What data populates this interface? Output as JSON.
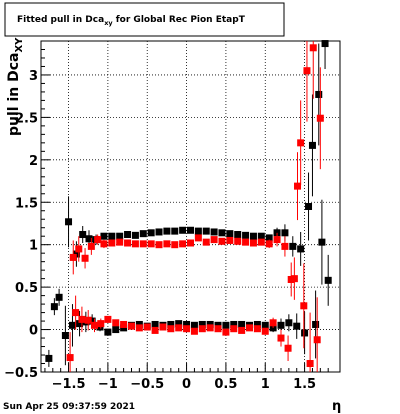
{
  "chart_data": {
    "type": "scatter",
    "title_main": "Fitted pull in Dca",
    "title_sub": "xy",
    "title_rest": " for Global Rec Pion EtapT",
    "ylabel_main": "pull in Dca",
    "ylabel_sub": "XY",
    "xlabel": "η",
    "timestamp": "Sun Apr 25 09:37:59 2021",
    "xlim": [
      -1.85,
      1.95
    ],
    "ylim": [
      -0.5,
      3.4
    ],
    "x_ticks": [
      -1.5,
      -1,
      -0.5,
      0,
      0.5,
      1,
      1.5
    ],
    "x_tick_labels": [
      "−1.5",
      "−1",
      "−0.5",
      "0",
      "0.5",
      "1",
      "1.5"
    ],
    "y_ticks": [
      -0.5,
      0,
      0.5,
      1,
      1.5,
      2,
      2.5,
      3
    ],
    "y_tick_labels": [
      "−0.5",
      "0",
      "0.5",
      "1",
      "1.5",
      "2",
      "2.5",
      "3"
    ],
    "grid": true,
    "series": [
      {
        "color": "#000000",
        "points": [
          {
            "x": -1.75,
            "y": -0.34,
            "e": 0.1
          },
          {
            "x": -1.68,
            "y": 0.27,
            "e": 0.1
          },
          {
            "x": -1.62,
            "y": 0.38,
            "e": 0.1
          },
          {
            "x": -1.54,
            "y": -0.07,
            "e": 0.35
          },
          {
            "x": -1.5,
            "y": 1.27,
            "e": 0.3
          },
          {
            "x": -1.45,
            "y": 0.05,
            "e": 0.25
          },
          {
            "x": -1.4,
            "y": 0.89,
            "e": 0.15
          },
          {
            "x": -1.36,
            "y": 0.07,
            "e": 0.15
          },
          {
            "x": -1.32,
            "y": 1.12,
            "e": 0.1
          },
          {
            "x": -1.28,
            "y": 0.09,
            "e": 0.12
          },
          {
            "x": -1.24,
            "y": 1.07,
            "e": 0.1
          },
          {
            "x": -1.2,
            "y": 0.1,
            "e": 0.08
          },
          {
            "x": -1.15,
            "y": 1.06,
            "e": 0.06
          },
          {
            "x": -1.1,
            "y": 0.03,
            "e": 0.05
          },
          {
            "x": -1.05,
            "y": 1.1,
            "e": 0.03
          },
          {
            "x": -1.0,
            "y": -0.03,
            "e": 0.03
          },
          {
            "x": -0.95,
            "y": 1.1,
            "e": 0.02
          },
          {
            "x": -0.9,
            "y": 0.0,
            "e": 0.02
          },
          {
            "x": -0.85,
            "y": 1.1,
            "e": 0.02
          },
          {
            "x": -0.8,
            "y": 0.02,
            "e": 0.02
          },
          {
            "x": -0.75,
            "y": 1.12,
            "e": 0.02
          },
          {
            "x": -0.7,
            "y": 0.05,
            "e": 0.02
          },
          {
            "x": -0.65,
            "y": 1.11,
            "e": 0.02
          },
          {
            "x": -0.6,
            "y": 0.06,
            "e": 0.02
          },
          {
            "x": -0.55,
            "y": 1.13,
            "e": 0.02
          },
          {
            "x": -0.5,
            "y": 0.04,
            "e": 0.02
          },
          {
            "x": -0.45,
            "y": 1.14,
            "e": 0.02
          },
          {
            "x": -0.4,
            "y": 0.06,
            "e": 0.02
          },
          {
            "x": -0.35,
            "y": 1.15,
            "e": 0.02
          },
          {
            "x": -0.3,
            "y": 0.05,
            "e": 0.02
          },
          {
            "x": -0.25,
            "y": 1.16,
            "e": 0.02
          },
          {
            "x": -0.2,
            "y": 0.06,
            "e": 0.02
          },
          {
            "x": -0.15,
            "y": 1.16,
            "e": 0.02
          },
          {
            "x": -0.1,
            "y": 0.07,
            "e": 0.02
          },
          {
            "x": -0.05,
            "y": 1.17,
            "e": 0.02
          },
          {
            "x": 0.0,
            "y": 0.06,
            "e": 0.02
          },
          {
            "x": 0.05,
            "y": 1.17,
            "e": 0.02
          },
          {
            "x": 0.1,
            "y": 0.05,
            "e": 0.02
          },
          {
            "x": 0.15,
            "y": 1.16,
            "e": 0.02
          },
          {
            "x": 0.2,
            "y": 0.06,
            "e": 0.02
          },
          {
            "x": 0.25,
            "y": 1.16,
            "e": 0.02
          },
          {
            "x": 0.3,
            "y": 0.06,
            "e": 0.02
          },
          {
            "x": 0.35,
            "y": 1.15,
            "e": 0.02
          },
          {
            "x": 0.4,
            "y": 0.05,
            "e": 0.02
          },
          {
            "x": 0.45,
            "y": 1.14,
            "e": 0.02
          },
          {
            "x": 0.5,
            "y": 0.05,
            "e": 0.02
          },
          {
            "x": 0.55,
            "y": 1.13,
            "e": 0.02
          },
          {
            "x": 0.6,
            "y": 0.06,
            "e": 0.02
          },
          {
            "x": 0.65,
            "y": 1.12,
            "e": 0.02
          },
          {
            "x": 0.7,
            "y": 0.06,
            "e": 0.02
          },
          {
            "x": 0.75,
            "y": 1.11,
            "e": 0.02
          },
          {
            "x": 0.8,
            "y": 0.05,
            "e": 0.02
          },
          {
            "x": 0.85,
            "y": 1.1,
            "e": 0.02
          },
          {
            "x": 0.9,
            "y": 0.06,
            "e": 0.02
          },
          {
            "x": 0.95,
            "y": 1.1,
            "e": 0.03
          },
          {
            "x": 1.0,
            "y": 0.05,
            "e": 0.03
          },
          {
            "x": 1.05,
            "y": 1.08,
            "e": 0.04
          },
          {
            "x": 1.1,
            "y": 0.02,
            "e": 0.05
          },
          {
            "x": 1.15,
            "y": 1.14,
            "e": 0.06
          },
          {
            "x": 1.2,
            "y": 0.05,
            "e": 0.08
          },
          {
            "x": 1.25,
            "y": 1.14,
            "e": 0.1
          },
          {
            "x": 1.3,
            "y": 0.08,
            "e": 0.1
          },
          {
            "x": 1.35,
            "y": 0.98,
            "e": 0.12
          },
          {
            "x": 1.4,
            "y": 0.04,
            "e": 0.15
          },
          {
            "x": 1.45,
            "y": 0.95,
            "e": 0.2
          },
          {
            "x": 1.5,
            "y": -0.04,
            "e": 0.25
          },
          {
            "x": 1.55,
            "y": 1.45,
            "e": 0.4
          },
          {
            "x": 1.6,
            "y": 2.17,
            "e": 0.6
          },
          {
            "x": 1.64,
            "y": 0.06,
            "e": 0.4
          },
          {
            "x": 1.68,
            "y": 2.77,
            "e": 0.6
          },
          {
            "x": 1.72,
            "y": 1.03,
            "e": 0.5
          },
          {
            "x": 1.76,
            "y": 3.37,
            "e": 0.3
          },
          {
            "x": 1.8,
            "y": 0.58,
            "e": 0.3
          }
        ]
      },
      {
        "color": "#ff0000",
        "points": [
          {
            "x": -1.48,
            "y": -0.33,
            "e": 0.3
          },
          {
            "x": -1.44,
            "y": 0.85,
            "e": 0.2
          },
          {
            "x": -1.41,
            "y": 0.2,
            "e": 0.2
          },
          {
            "x": -1.37,
            "y": 0.95,
            "e": 0.15
          },
          {
            "x": -1.33,
            "y": 0.12,
            "e": 0.15
          },
          {
            "x": -1.29,
            "y": 0.84,
            "e": 0.12
          },
          {
            "x": -1.25,
            "y": 0.11,
            "e": 0.12
          },
          {
            "x": -1.21,
            "y": 0.98,
            "e": 0.1
          },
          {
            "x": -1.17,
            "y": 0.05,
            "e": 0.08
          },
          {
            "x": -1.13,
            "y": 1.06,
            "e": 0.06
          },
          {
            "x": -1.09,
            "y": 0.07,
            "e": 0.06
          },
          {
            "x": -1.05,
            "y": 1.01,
            "e": 0.05
          },
          {
            "x": -1.0,
            "y": 0.12,
            "e": 0.04
          },
          {
            "x": -0.95,
            "y": 1.02,
            "e": 0.03
          },
          {
            "x": -0.9,
            "y": 0.08,
            "e": 0.03
          },
          {
            "x": -0.85,
            "y": 1.03,
            "e": 0.02
          },
          {
            "x": -0.8,
            "y": 0.06,
            "e": 0.02
          },
          {
            "x": -0.75,
            "y": 1.02,
            "e": 0.02
          },
          {
            "x": -0.7,
            "y": 0.04,
            "e": 0.02
          },
          {
            "x": -0.65,
            "y": 1.01,
            "e": 0.02
          },
          {
            "x": -0.6,
            "y": 0.02,
            "e": 0.02
          },
          {
            "x": -0.55,
            "y": 1.01,
            "e": 0.02
          },
          {
            "x": -0.5,
            "y": 0.03,
            "e": 0.02
          },
          {
            "x": -0.45,
            "y": 1.01,
            "e": 0.02
          },
          {
            "x": -0.4,
            "y": -0.01,
            "e": 0.02
          },
          {
            "x": -0.35,
            "y": 1.0,
            "e": 0.02
          },
          {
            "x": -0.3,
            "y": 0.03,
            "e": 0.02
          },
          {
            "x": -0.25,
            "y": 1.01,
            "e": 0.02
          },
          {
            "x": -0.2,
            "y": 0.01,
            "e": 0.02
          },
          {
            "x": -0.15,
            "y": 1.0,
            "e": 0.02
          },
          {
            "x": -0.1,
            "y": 0.02,
            "e": 0.02
          },
          {
            "x": -0.05,
            "y": 1.01,
            "e": 0.02
          },
          {
            "x": 0.0,
            "y": 0.01,
            "e": 0.02
          },
          {
            "x": 0.05,
            "y": 1.02,
            "e": 0.02
          },
          {
            "x": 0.1,
            "y": -0.02,
            "e": 0.02
          },
          {
            "x": 0.15,
            "y": 1.08,
            "e": 0.02
          },
          {
            "x": 0.2,
            "y": 0.01,
            "e": 0.02
          },
          {
            "x": 0.25,
            "y": 1.03,
            "e": 0.02
          },
          {
            "x": 0.3,
            "y": 0.02,
            "e": 0.02
          },
          {
            "x": 0.35,
            "y": 1.06,
            "e": 0.02
          },
          {
            "x": 0.4,
            "y": 0.01,
            "e": 0.02
          },
          {
            "x": 0.45,
            "y": 1.04,
            "e": 0.02
          },
          {
            "x": 0.5,
            "y": -0.03,
            "e": 0.02
          },
          {
            "x": 0.55,
            "y": 1.05,
            "e": 0.02
          },
          {
            "x": 0.6,
            "y": 0.01,
            "e": 0.02
          },
          {
            "x": 0.65,
            "y": 1.04,
            "e": 0.02
          },
          {
            "x": 0.7,
            "y": -0.01,
            "e": 0.02
          },
          {
            "x": 0.75,
            "y": 1.03,
            "e": 0.02
          },
          {
            "x": 0.8,
            "y": 0.02,
            "e": 0.02
          },
          {
            "x": 0.85,
            "y": 1.02,
            "e": 0.02
          },
          {
            "x": 0.9,
            "y": 0.01,
            "e": 0.03
          },
          {
            "x": 0.95,
            "y": 1.03,
            "e": 0.03
          },
          {
            "x": 1.0,
            "y": -0.02,
            "e": 0.04
          },
          {
            "x": 1.05,
            "y": 1.01,
            "e": 0.05
          },
          {
            "x": 1.1,
            "y": 0.08,
            "e": 0.06
          },
          {
            "x": 1.15,
            "y": 1.06,
            "e": 0.08
          },
          {
            "x": 1.2,
            "y": -0.1,
            "e": 0.1
          },
          {
            "x": 1.25,
            "y": 0.98,
            "e": 0.12
          },
          {
            "x": 1.29,
            "y": -0.22,
            "e": 0.15
          },
          {
            "x": 1.33,
            "y": 0.59,
            "e": 0.2
          },
          {
            "x": 1.37,
            "y": 0.6,
            "e": 0.25
          },
          {
            "x": 1.41,
            "y": 1.69,
            "e": 0.4
          },
          {
            "x": 1.45,
            "y": 2.2,
            "e": 0.5
          },
          {
            "x": 1.49,
            "y": 0.28,
            "e": 0.5
          },
          {
            "x": 1.53,
            "y": 3.05,
            "e": 0.6
          },
          {
            "x": 1.57,
            "y": -0.4,
            "e": 0.6
          },
          {
            "x": 1.61,
            "y": 3.32,
            "e": 0.6
          },
          {
            "x": 1.66,
            "y": -0.12,
            "e": 0.5
          },
          {
            "x": 1.7,
            "y": 2.49,
            "e": 0.6
          }
        ]
      }
    ]
  }
}
